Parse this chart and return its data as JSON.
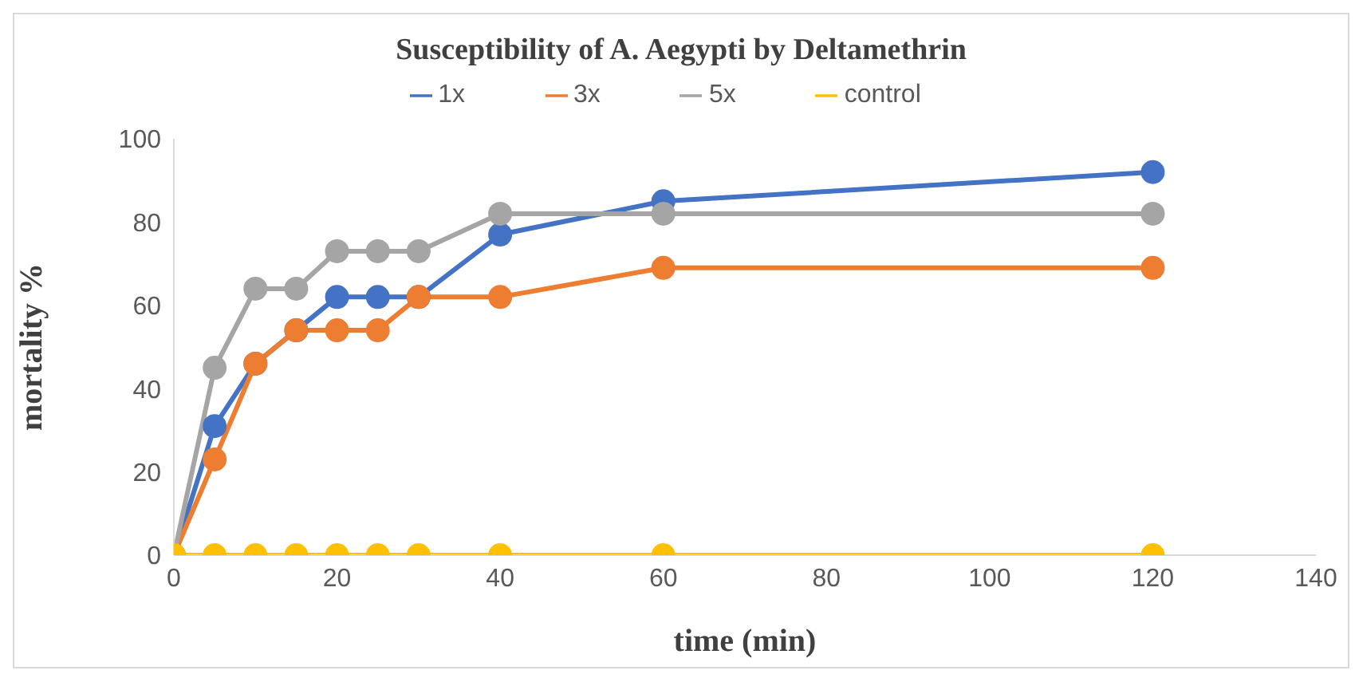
{
  "chart_data": {
    "type": "line",
    "title": "Susceptibility of A. Aegypti by Deltamethrin",
    "xlabel": "time (min)",
    "ylabel": "mortality %",
    "x": [
      0,
      5,
      10,
      15,
      20,
      25,
      30,
      40,
      60,
      120
    ],
    "series": [
      {
        "name": "1x",
        "color": "#4472c4",
        "values": [
          0,
          31,
          46,
          54,
          62,
          62,
          62,
          77,
          85,
          92
        ]
      },
      {
        "name": "3x",
        "color": "#ed7d31",
        "values": [
          0,
          23,
          46,
          54,
          54,
          54,
          62,
          62,
          69,
          69
        ]
      },
      {
        "name": "5x",
        "color": "#a5a5a5",
        "values": [
          0,
          45,
          64,
          64,
          73,
          73,
          73,
          82,
          82,
          82
        ]
      },
      {
        "name": "control",
        "color": "#ffc000",
        "values": [
          0,
          0,
          0,
          0,
          0,
          0,
          0,
          0,
          0,
          0
        ]
      }
    ],
    "xlim": [
      0,
      140
    ],
    "xticks": [
      0,
      20,
      40,
      60,
      80,
      100,
      120,
      140
    ],
    "ylim": [
      0,
      100
    ],
    "yticks": [
      0,
      20,
      40,
      60,
      80,
      100
    ],
    "grid": false,
    "legend": "top",
    "marker": "circle",
    "line_style": "solid"
  }
}
